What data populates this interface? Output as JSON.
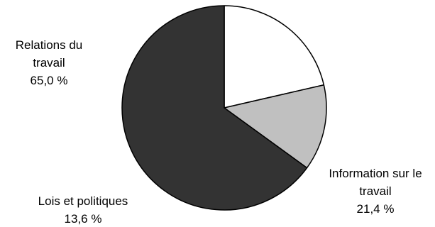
{
  "chart_data": {
    "type": "pie",
    "title": "",
    "start_angle_deg": -90,
    "direction": "clockwise",
    "slices": [
      {
        "label_lines": [
          "Information sur le",
          "travail"
        ],
        "value": 21.4,
        "value_label": "21,4 %",
        "color": "#ffffff"
      },
      {
        "label_lines": [
          "Lois et politiques"
        ],
        "value": 13.6,
        "value_label": "13,6 %",
        "color": "#c0c0c0"
      },
      {
        "label_lines": [
          "Relations du",
          "travail"
        ],
        "value": 65.0,
        "value_label": "65,0 %",
        "color": "#333333"
      }
    ],
    "slice_outline_color": "#000000"
  }
}
